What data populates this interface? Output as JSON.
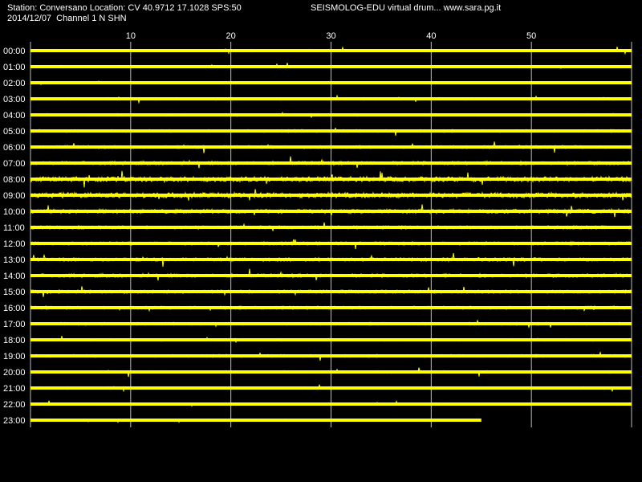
{
  "header": {
    "station_line": "Station: Conversano Location: CV 40.9712 17.1028 SPS:50",
    "date_channel_line": "2014/12/07  Channel 1 N SHN",
    "title": "SEISMOLOG-EDU virtual drum... www.sara.pg.it"
  },
  "colors": {
    "background": "#000000",
    "trace": "#ffff00",
    "grid": "#bdbdbd",
    "text": "#ffffff"
  },
  "chart_data": {
    "type": "line",
    "x_ticks": [
      "10",
      "20",
      "30",
      "40",
      "50"
    ],
    "x_tick_values": [
      10,
      20,
      30,
      40,
      50
    ],
    "xlim": [
      0,
      60
    ],
    "grid": true,
    "rows": [
      "00:00",
      "01:00",
      "02:00",
      "03:00",
      "04:00",
      "05:00",
      "06:00",
      "07:00",
      "08:00",
      "09:00",
      "10:00",
      "11:00",
      "12:00",
      "13:00",
      "14:00",
      "15:00",
      "16:00",
      "17:00",
      "18:00",
      "19:00",
      "20:00",
      "21:00",
      "22:00",
      "23:00"
    ],
    "row_activity": [
      0.35,
      0.35,
      0.3,
      0.4,
      0.4,
      0.45,
      0.5,
      0.6,
      0.85,
      0.9,
      0.7,
      0.55,
      0.55,
      0.6,
      0.6,
      0.55,
      0.5,
      0.45,
      0.4,
      0.45,
      0.4,
      0.35,
      0.35,
      0.35
    ],
    "last_row_end_minute": 45
  }
}
